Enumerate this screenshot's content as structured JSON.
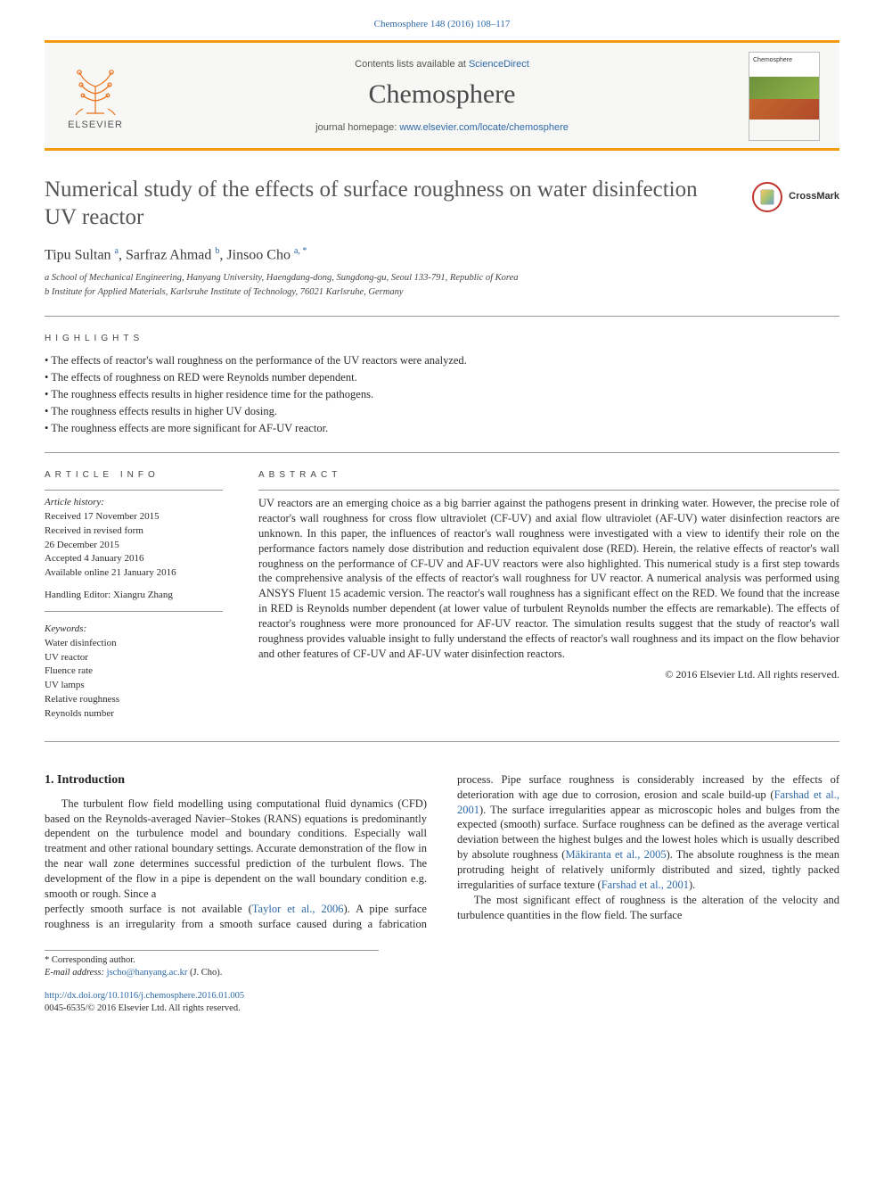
{
  "citation": {
    "journal_link_text": "Chemosphere 148 (2016) 108–117"
  },
  "masthead": {
    "contents_prefix": "Contents lists available at ",
    "contents_link": "ScienceDirect",
    "journal_name": "Chemosphere",
    "homepage_prefix": "journal homepage: ",
    "homepage_link": "www.elsevier.com/locate/chemosphere",
    "publisher_label": "ELSEVIER",
    "bar_color": "#f39c12",
    "masthead_bg": "#f7f7f5"
  },
  "crossmark": {
    "label": "CrossMark"
  },
  "title": "Numerical study of the effects of surface roughness on water disinfection UV reactor",
  "authors_html": "Tipu Sultan <sup>a</sup>, Sarfraz Ahmad <sup>b</sup>, Jinsoo Cho <sup>a, *</sup>",
  "affiliations": {
    "a": "a School of Mechanical Engineering, Hanyang University, Haengdang-dong, Sungdong-gu, Seoul 133-791, Republic of Korea",
    "b": "b Institute for Applied Materials, Karlsruhe Institute of Technology, 76021 Karlsruhe, Germany"
  },
  "labels": {
    "highlights": "HIGHLIGHTS",
    "article_info": "ARTICLE INFO",
    "abstract": "ABSTRACT"
  },
  "highlights": [
    "The effects of reactor's wall roughness on the performance of the UV reactors were analyzed.",
    "The effects of roughness on RED were Reynolds number dependent.",
    "The roughness effects results in higher residence time for the pathogens.",
    "The roughness effects results in higher UV dosing.",
    "The roughness effects are more significant for AF-UV reactor."
  ],
  "article_info": {
    "history_head": "Article history:",
    "received": "Received 17 November 2015",
    "revised1": "Received in revised form",
    "revised2": "26 December 2015",
    "accepted": "Accepted 4 January 2016",
    "online": "Available online 21 January 2016",
    "editor": "Handling Editor: Xiangru Zhang",
    "keywords_head": "Keywords:",
    "keywords": [
      "Water disinfection",
      "UV reactor",
      "Fluence rate",
      "UV lamps",
      "Relative roughness",
      "Reynolds number"
    ]
  },
  "abstract": "UV reactors are an emerging choice as a big barrier against the pathogens present in drinking water. However, the precise role of reactor's wall roughness for cross flow ultraviolet (CF-UV) and axial flow ultraviolet (AF-UV) water disinfection reactors are unknown. In this paper, the influences of reactor's wall roughness were investigated with a view to identify their role on the performance factors namely dose distribution and reduction equivalent dose (RED). Herein, the relative effects of reactor's wall roughness on the performance of CF-UV and AF-UV reactors were also highlighted. This numerical study is a first step towards the comprehensive analysis of the effects of reactor's wall roughness for UV reactor. A numerical analysis was performed using ANSYS Fluent 15 academic version. The reactor's wall roughness has a significant effect on the RED. We found that the increase in RED is Reynolds number dependent (at lower value of turbulent Reynolds number the effects are remarkable). The effects of reactor's roughness were more pronounced for AF-UV reactor. The simulation results suggest that the study of reactor's wall roughness provides valuable insight to fully understand the effects of reactor's wall roughness and its impact on the flow behavior and other features of CF-UV and AF-UV water disinfection reactors.",
  "copyright": "© 2016 Elsevier Ltd. All rights reserved.",
  "body": {
    "section_heading": "1. Introduction",
    "p1": "The turbulent flow field modelling using computational fluid dynamics (CFD) based on the Reynolds-averaged Navier–Stokes (RANS) equations is predominantly dependent on the turbulence model and boundary conditions. Especially wall treatment and other rational boundary settings. Accurate demonstration of the flow in the near wall zone determines successful prediction of the turbulent flows. The development of the flow in a pipe is dependent on the wall boundary condition e.g. smooth or rough. Since a",
    "p2_pre": "perfectly smooth surface is not available (",
    "ref1": "Taylor et al., 2006",
    "p2_mid1": "). A pipe surface roughness is an irregularity from a smooth surface caused during a fabrication process. Pipe surface roughness is considerably increased by the effects of deterioration with age due to corrosion, erosion and scale build-up (",
    "ref2": "Farshad et al., 2001",
    "p2_mid2": "). The surface irregularities appear as microscopic holes and bulges from the expected (smooth) surface. Surface roughness can be defined as the average vertical deviation between the highest bulges and the lowest holes which is usually described by absolute roughness (",
    "ref3": "Mäkiranta et al., 2005",
    "p2_mid3": "). The absolute roughness is the mean protruding height of relatively uniformly distributed and sized, tightly packed irregularities of surface texture (",
    "ref4": "Farshad et al., 2001",
    "p2_end": ").",
    "p3": "The most significant effect of roughness is the alteration of the velocity and turbulence quantities in the flow field. The surface"
  },
  "footnote": {
    "corresp": "* Corresponding author.",
    "email_label": "E-mail address: ",
    "email": "jscho@hanyang.ac.kr",
    "email_who": " (J. Cho)."
  },
  "doi": {
    "link": "http://dx.doi.org/10.1016/j.chemosphere.2016.01.005",
    "issn": "0045-6535/© 2016 Elsevier Ltd. All rights reserved."
  },
  "colors": {
    "link": "#2e6aa8",
    "text": "#2b2b2b",
    "heading_muted": "#555555"
  }
}
